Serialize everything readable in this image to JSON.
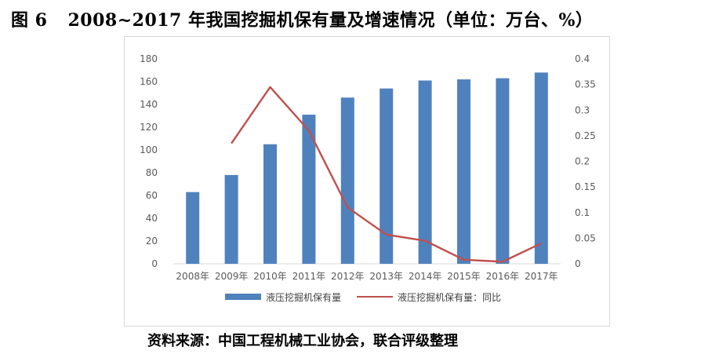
{
  "figure": {
    "number": "图 6",
    "title": "2008~2017 年我国挖掘机保有量及增速情况（单位：万台、%）"
  },
  "source": "资料来源：中国工程机械工业协会，联合评级整理",
  "chart_data": {
    "type": "bar",
    "title": "",
    "categories": [
      "2008年",
      "2009年",
      "2010年",
      "2011年",
      "2012年",
      "2013年",
      "2014年",
      "2015年",
      "2016年",
      "2017年"
    ],
    "series": [
      {
        "name": "液压挖掘机保有量",
        "type": "bar",
        "axis": "left",
        "color": "#4f81bd",
        "values": [
          63,
          78,
          105,
          131,
          146,
          154,
          161,
          162,
          163,
          168
        ]
      },
      {
        "name": "液压挖掘机保有量：同比",
        "type": "line",
        "axis": "right",
        "color": "#c0504d",
        "values": [
          null,
          0.235,
          0.345,
          0.26,
          0.11,
          0.057,
          0.045,
          0.008,
          0.004,
          0.04
        ]
      }
    ],
    "y_left": {
      "min": 0,
      "max": 180,
      "ticks": [
        "0",
        "20",
        "40",
        "60",
        "80",
        "100",
        "120",
        "140",
        "160",
        "180"
      ]
    },
    "y_right": {
      "min": 0,
      "max": 0.4,
      "ticks": [
        "0",
        "0.05",
        "0.1",
        "0.15",
        "0.2",
        "0.25",
        "0.3",
        "0.35",
        "0.4"
      ]
    },
    "grid": false,
    "legend_position": "bottom"
  }
}
